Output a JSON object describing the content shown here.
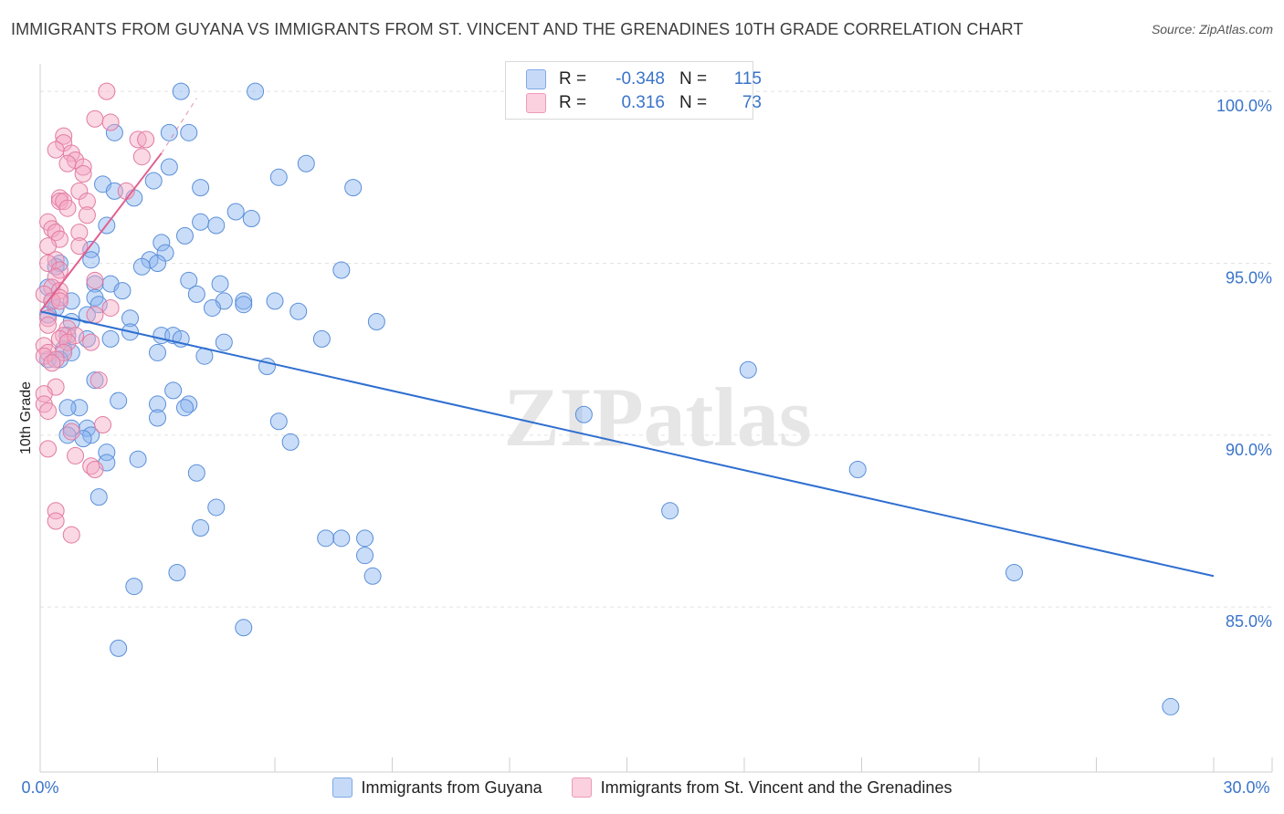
{
  "title": "IMMIGRANTS FROM GUYANA VS IMMIGRANTS FROM ST. VINCENT AND THE GRENADINES 10TH GRADE CORRELATION CHART",
  "source": "Source: ZipAtlas.com",
  "watermark": "ZIPatlas",
  "legend": {
    "rows": [
      {
        "r_label": "R =",
        "r_value": "-0.348",
        "n_label": "N =",
        "n_value": "115",
        "color": "#8ab4f0"
      },
      {
        "r_label": "R =",
        "r_value": "0.316",
        "n_label": "N =",
        "n_value": "73",
        "color": "#f5a8c4"
      }
    ]
  },
  "chart_data": {
    "type": "scatter",
    "title": "IMMIGRANTS FROM GUYANA VS IMMIGRANTS FROM ST. VINCENT AND THE GRENADINES 10TH GRADE CORRELATION CHART",
    "xlabel": "",
    "ylabel": "10th Grade",
    "xlim": [
      0,
      30
    ],
    "ylim": [
      80.2,
      100.8
    ],
    "x_tick_labels": [
      "0.0%",
      "30.0%"
    ],
    "y_ticks": [
      85,
      90,
      95,
      100
    ],
    "y_tick_labels": [
      "85.0%",
      "90.0%",
      "95.0%",
      "100.0%"
    ],
    "grid": true,
    "series": [
      {
        "name": "Immigrants from Guyana",
        "color": "#8ab4f0",
        "stroke": "#5a8fd9",
        "trend": {
          "x": [
            0,
            30
          ],
          "y": [
            93.6,
            85.9
          ],
          "color": "#2f6fd0"
        },
        "points": [
          [
            3.6,
            100
          ],
          [
            5.5,
            100
          ],
          [
            1.9,
            98.8
          ],
          [
            3.3,
            98.8
          ],
          [
            3.8,
            98.8
          ],
          [
            6.8,
            97.9
          ],
          [
            3.3,
            97.8
          ],
          [
            6.1,
            97.5
          ],
          [
            2.9,
            97.4
          ],
          [
            8.0,
            97.2
          ],
          [
            4.1,
            97.2
          ],
          [
            1.6,
            97.3
          ],
          [
            1.9,
            97.1
          ],
          [
            2.4,
            96.9
          ],
          [
            5.0,
            96.5
          ],
          [
            5.4,
            96.3
          ],
          [
            4.1,
            96.2
          ],
          [
            4.5,
            96.1
          ],
          [
            1.7,
            96.1
          ],
          [
            3.7,
            95.8
          ],
          [
            3.1,
            95.6
          ],
          [
            3.2,
            95.3
          ],
          [
            1.3,
            95.4
          ],
          [
            1.3,
            95.1
          ],
          [
            2.8,
            95.1
          ],
          [
            3.0,
            95.0
          ],
          [
            2.6,
            94.9
          ],
          [
            0.5,
            95.0
          ],
          [
            0.4,
            94.9
          ],
          [
            7.7,
            94.8
          ],
          [
            3.8,
            94.5
          ],
          [
            4.6,
            94.4
          ],
          [
            1.8,
            94.4
          ],
          [
            1.4,
            94.4
          ],
          [
            2.1,
            94.2
          ],
          [
            0.2,
            94.3
          ],
          [
            4.0,
            94.1
          ],
          [
            1.4,
            94.0
          ],
          [
            0.3,
            93.9
          ],
          [
            0.8,
            93.9
          ],
          [
            6.0,
            93.9
          ],
          [
            5.2,
            93.9
          ],
          [
            5.2,
            93.8
          ],
          [
            4.7,
            93.9
          ],
          [
            1.5,
            93.8
          ],
          [
            0.4,
            93.7
          ],
          [
            4.4,
            93.7
          ],
          [
            6.6,
            93.6
          ],
          [
            0.2,
            93.5
          ],
          [
            1.2,
            93.5
          ],
          [
            2.3,
            93.4
          ],
          [
            0.8,
            93.3
          ],
          [
            8.6,
            93.3
          ],
          [
            2.3,
            93.0
          ],
          [
            0.7,
            92.9
          ],
          [
            1.2,
            92.8
          ],
          [
            3.1,
            92.9
          ],
          [
            3.4,
            92.9
          ],
          [
            3.6,
            92.8
          ],
          [
            1.8,
            92.8
          ],
          [
            4.7,
            92.7
          ],
          [
            7.2,
            92.8
          ],
          [
            0.6,
            92.5
          ],
          [
            0.8,
            92.4
          ],
          [
            3.0,
            92.4
          ],
          [
            4.2,
            92.3
          ],
          [
            0.2,
            92.2
          ],
          [
            0.5,
            92.2
          ],
          [
            5.8,
            92.0
          ],
          [
            18.1,
            91.9
          ],
          [
            1.4,
            91.6
          ],
          [
            3.4,
            91.3
          ],
          [
            2.0,
            91.0
          ],
          [
            3.0,
            90.9
          ],
          [
            3.8,
            90.9
          ],
          [
            3.7,
            90.8
          ],
          [
            1.0,
            90.8
          ],
          [
            0.7,
            90.8
          ],
          [
            3.0,
            90.5
          ],
          [
            6.1,
            90.4
          ],
          [
            13.9,
            90.6
          ],
          [
            0.8,
            90.2
          ],
          [
            1.2,
            90.2
          ],
          [
            1.3,
            90.0
          ],
          [
            1.1,
            89.9
          ],
          [
            0.7,
            90.0
          ],
          [
            6.4,
            89.8
          ],
          [
            1.7,
            89.5
          ],
          [
            2.5,
            89.3
          ],
          [
            1.7,
            89.2
          ],
          [
            20.9,
            89.0
          ],
          [
            4.0,
            88.9
          ],
          [
            1.5,
            88.2
          ],
          [
            4.5,
            87.9
          ],
          [
            16.1,
            87.8
          ],
          [
            4.1,
            87.3
          ],
          [
            7.3,
            87.0
          ],
          [
            7.7,
            87.0
          ],
          [
            8.3,
            87.0
          ],
          [
            8.3,
            86.5
          ],
          [
            8.5,
            85.9
          ],
          [
            3.5,
            86.0
          ],
          [
            24.9,
            86.0
          ],
          [
            2.4,
            85.6
          ],
          [
            5.2,
            84.4
          ],
          [
            2.0,
            83.8
          ],
          [
            28.9,
            82.1
          ]
        ]
      },
      {
        "name": "Immigrants from St. Vincent and the Grenadines",
        "color": "#f5a8c4",
        "stroke": "#e27ba1",
        "trend": {
          "x": [
            0,
            3.1
          ],
          "y": [
            93.6,
            98.2
          ],
          "color": "#e0608f",
          "dash_to": [
            4.0,
            99.8
          ]
        },
        "points": [
          [
            1.7,
            100
          ],
          [
            1.4,
            99.2
          ],
          [
            1.8,
            99.1
          ],
          [
            0.6,
            98.7
          ],
          [
            2.5,
            98.6
          ],
          [
            2.7,
            98.6
          ],
          [
            0.6,
            98.5
          ],
          [
            0.4,
            98.3
          ],
          [
            0.8,
            98.2
          ],
          [
            2.6,
            98.1
          ],
          [
            0.9,
            98.0
          ],
          [
            0.7,
            97.9
          ],
          [
            1.1,
            97.8
          ],
          [
            1.1,
            97.6
          ],
          [
            1.0,
            97.1
          ],
          [
            2.2,
            97.1
          ],
          [
            0.5,
            96.9
          ],
          [
            0.5,
            96.8
          ],
          [
            0.6,
            96.8
          ],
          [
            1.2,
            96.8
          ],
          [
            0.7,
            96.6
          ],
          [
            1.2,
            96.4
          ],
          [
            0.2,
            96.2
          ],
          [
            0.3,
            96.0
          ],
          [
            0.4,
            95.9
          ],
          [
            1.0,
            95.9
          ],
          [
            0.5,
            95.7
          ],
          [
            0.2,
            95.5
          ],
          [
            1.0,
            95.5
          ],
          [
            0.4,
            95.1
          ],
          [
            0.2,
            95.0
          ],
          [
            0.5,
            94.8
          ],
          [
            0.4,
            94.6
          ],
          [
            1.4,
            94.5
          ],
          [
            0.3,
            94.3
          ],
          [
            0.5,
            94.2
          ],
          [
            0.1,
            94.1
          ],
          [
            0.5,
            94.0
          ],
          [
            0.3,
            93.9
          ],
          [
            0.5,
            93.9
          ],
          [
            1.8,
            93.7
          ],
          [
            1.4,
            93.5
          ],
          [
            0.2,
            93.4
          ],
          [
            0.2,
            93.2
          ],
          [
            0.7,
            93.1
          ],
          [
            0.6,
            92.9
          ],
          [
            0.9,
            92.9
          ],
          [
            0.5,
            92.8
          ],
          [
            1.3,
            92.7
          ],
          [
            0.1,
            92.6
          ],
          [
            0.7,
            92.7
          ],
          [
            0.2,
            92.4
          ],
          [
            0.6,
            92.4
          ],
          [
            0.1,
            92.3
          ],
          [
            0.4,
            92.2
          ],
          [
            0.3,
            92.1
          ],
          [
            1.5,
            91.6
          ],
          [
            0.4,
            91.4
          ],
          [
            0.1,
            91.2
          ],
          [
            0.1,
            90.9
          ],
          [
            0.2,
            90.7
          ],
          [
            1.6,
            90.3
          ],
          [
            0.8,
            90.1
          ],
          [
            0.2,
            89.6
          ],
          [
            0.9,
            89.4
          ],
          [
            1.3,
            89.1
          ],
          [
            1.4,
            89.0
          ],
          [
            0.4,
            87.8
          ],
          [
            0.4,
            87.5
          ],
          [
            0.8,
            87.1
          ]
        ]
      }
    ]
  }
}
